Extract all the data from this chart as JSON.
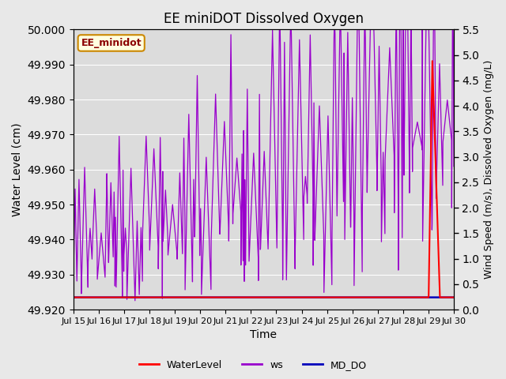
{
  "title": "EE miniDOT Dissolved Oxygen",
  "xlabel": "Time",
  "ylabel_left": "Water Level (cm)",
  "ylabel_right": "Wind Speed (m/s), Dissolved Oxygen (mg/L)",
  "legend_label": "EE_minidot",
  "ylim_left": [
    49.92,
    50.0
  ],
  "ylim_right": [
    0.0,
    5.5
  ],
  "yticks_left": [
    49.92,
    49.93,
    49.94,
    49.95,
    49.96,
    49.97,
    49.98,
    49.99,
    50.0
  ],
  "yticks_right": [
    0.0,
    0.5,
    1.0,
    1.5,
    2.0,
    2.5,
    3.0,
    3.5,
    4.0,
    4.5,
    5.0,
    5.5
  ],
  "xtick_labels": [
    "Jul 15",
    "Jul 16",
    "Jul 17",
    "Jul 18",
    "Jul 19",
    "Jul 20",
    "Jul 21",
    "Jul 22",
    "Jul 23",
    "Jul 24",
    "Jul 25",
    "Jul 26",
    "Jul 27",
    "Jul 28",
    "Jul 29",
    "Jul 30"
  ],
  "bg_color": "#e8e8e8",
  "plot_bg_color": "#dcdcdc",
  "ws_color": "#9900cc",
  "wl_color": "#ff0000",
  "do_color": "#0000bb",
  "seed": 42,
  "n_days": 15,
  "pts_per_day": 144
}
